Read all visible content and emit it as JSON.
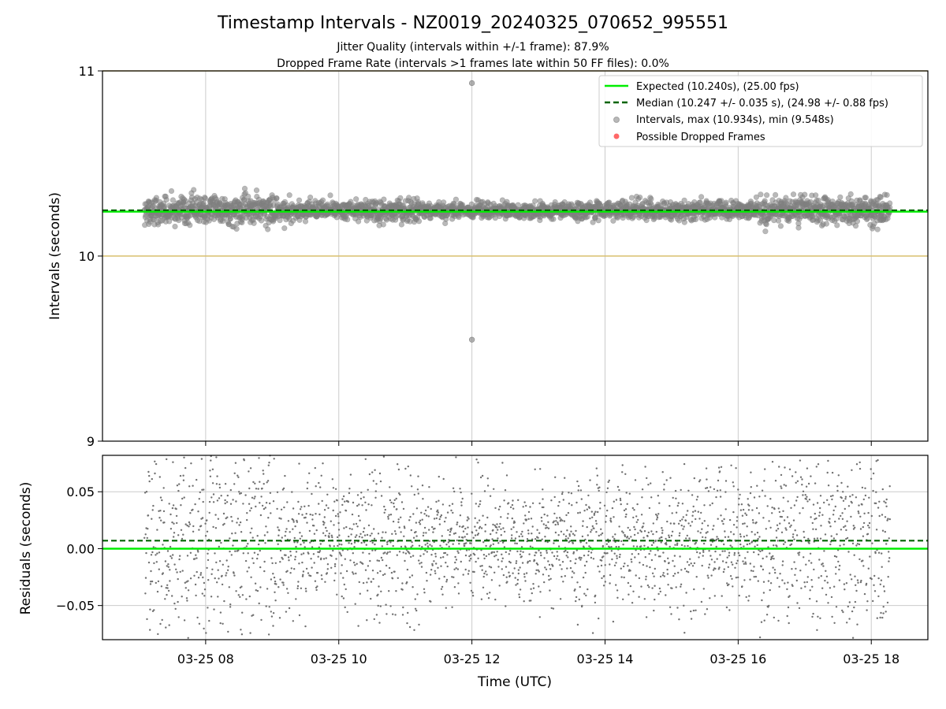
{
  "chart_data": [
    {
      "type": "scatter",
      "title": "Timestamp Intervals - NZ0019_20240325_070652_995551",
      "subtitle_lines": [
        "Jitter Quality (intervals within +/-1 frame): 87.9%",
        "Dropped Frame Rate (intervals >1 frames late within 50 FF files): 0.0%"
      ],
      "ylabel": "Intervals (seconds)",
      "ylim": [
        9,
        11
      ],
      "yticks": [
        "11",
        "10",
        "9"
      ],
      "xlim_hours": [
        6.45,
        18.85
      ],
      "grid": "vertical",
      "expected_interval": 10.24,
      "median_interval": 10.247,
      "reference_bounds": [
        10,
        11
      ],
      "legend_position": "top-right",
      "legend": [
        "Expected (10.240s), (25.00 fps)",
        "Median (10.247 +/- 0.035 s), (24.98 +/- 0.88 fps)",
        "Intervals, max (10.934s), min (9.548s)",
        "Possible Dropped Frames"
      ],
      "outliers": [
        {
          "x": "03-25 12:00",
          "y": 10.934
        },
        {
          "x": "03-25 12:00",
          "y": 9.548
        }
      ],
      "series": [
        {
          "name": "Intervals",
          "color": "#808080",
          "marker": "circle",
          "cluster_center": 10.247,
          "spread": 0.035,
          "x_range": [
            "03-25 07:05",
            "03-25 18:17"
          ]
        },
        {
          "name": "Possible Dropped Frames",
          "color": "#ff4d4d",
          "count": 0
        }
      ]
    },
    {
      "type": "scatter",
      "ylabel": "Residuals (seconds)",
      "xlabel": "Time (UTC)",
      "ylim": [
        -0.08,
        0.082
      ],
      "yticks": [
        "0.05",
        "0.00",
        "−0.05"
      ],
      "xticks": [
        "03-25 08",
        "03-25 10",
        "03-25 12",
        "03-25 14",
        "03-25 16",
        "03-25 18"
      ],
      "grid": "both",
      "expected_residual": 0.0,
      "median_residual": 0.007,
      "series": [
        {
          "name": "Residuals",
          "color": "#707070",
          "marker": "dot",
          "x_range": [
            "03-25 07:05",
            "03-25 18:17"
          ]
        }
      ]
    }
  ],
  "colors": {
    "expected": "#00ee00",
    "median": "#006400",
    "reference": "#d9bf6e",
    "points": "#808080",
    "dropped": "#ff4d4d",
    "grid": "#cccccc"
  }
}
